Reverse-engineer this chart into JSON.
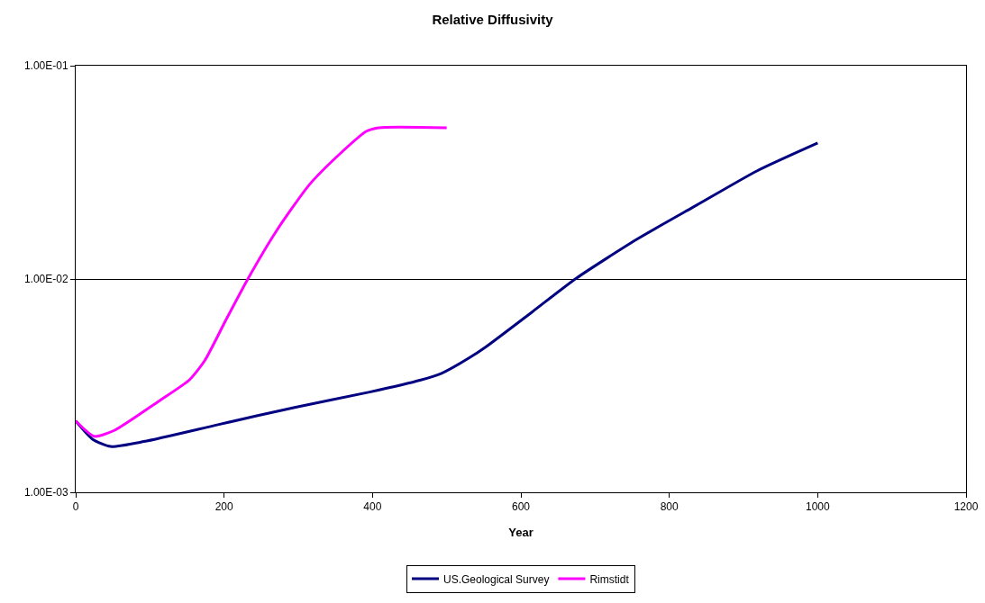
{
  "chart_data": {
    "type": "line",
    "title": "Relative Diffusivity",
    "xlabel": "Year",
    "xlim": [
      0,
      1200
    ],
    "xticks": [
      0,
      200,
      400,
      600,
      800,
      1000,
      1200
    ],
    "ylim": [
      0.001,
      0.1
    ],
    "yticks": [
      {
        "value": 0.001,
        "label": "1.00E-03"
      },
      {
        "value": 0.01,
        "label": "1.00E-02"
      },
      {
        "value": 0.1,
        "label": "1.00E-01"
      }
    ],
    "log": "y",
    "grid": "y",
    "legend": "bottom",
    "marker": "none",
    "line_style": "solid",
    "series": [
      {
        "name": "US.Geological Survey",
        "color": "#000080",
        "x": [
          0,
          23,
          47,
          92,
          193,
          295,
          396,
          465,
          493,
          530,
          554,
          615,
          675,
          757,
          837,
          918,
          1000
        ],
        "values": [
          0.00216,
          0.00177,
          0.00164,
          0.00173,
          0.00208,
          0.0025,
          0.00295,
          0.00336,
          0.00361,
          0.00426,
          0.00484,
          0.007,
          0.0101,
          0.0154,
          0.0222,
          0.0321,
          0.0434
        ]
      },
      {
        "name": "Rimstidt",
        "color": "#ff00ff",
        "x": [
          0,
          25,
          52,
          113,
          153,
          174,
          202,
          232,
          271,
          315,
          356,
          392,
          408,
          500
        ],
        "values": [
          0.00216,
          0.00183,
          0.00195,
          0.00269,
          0.00336,
          0.00415,
          0.00638,
          0.01,
          0.0169,
          0.0277,
          0.0386,
          0.0493,
          0.0512,
          0.0512
        ]
      }
    ]
  }
}
